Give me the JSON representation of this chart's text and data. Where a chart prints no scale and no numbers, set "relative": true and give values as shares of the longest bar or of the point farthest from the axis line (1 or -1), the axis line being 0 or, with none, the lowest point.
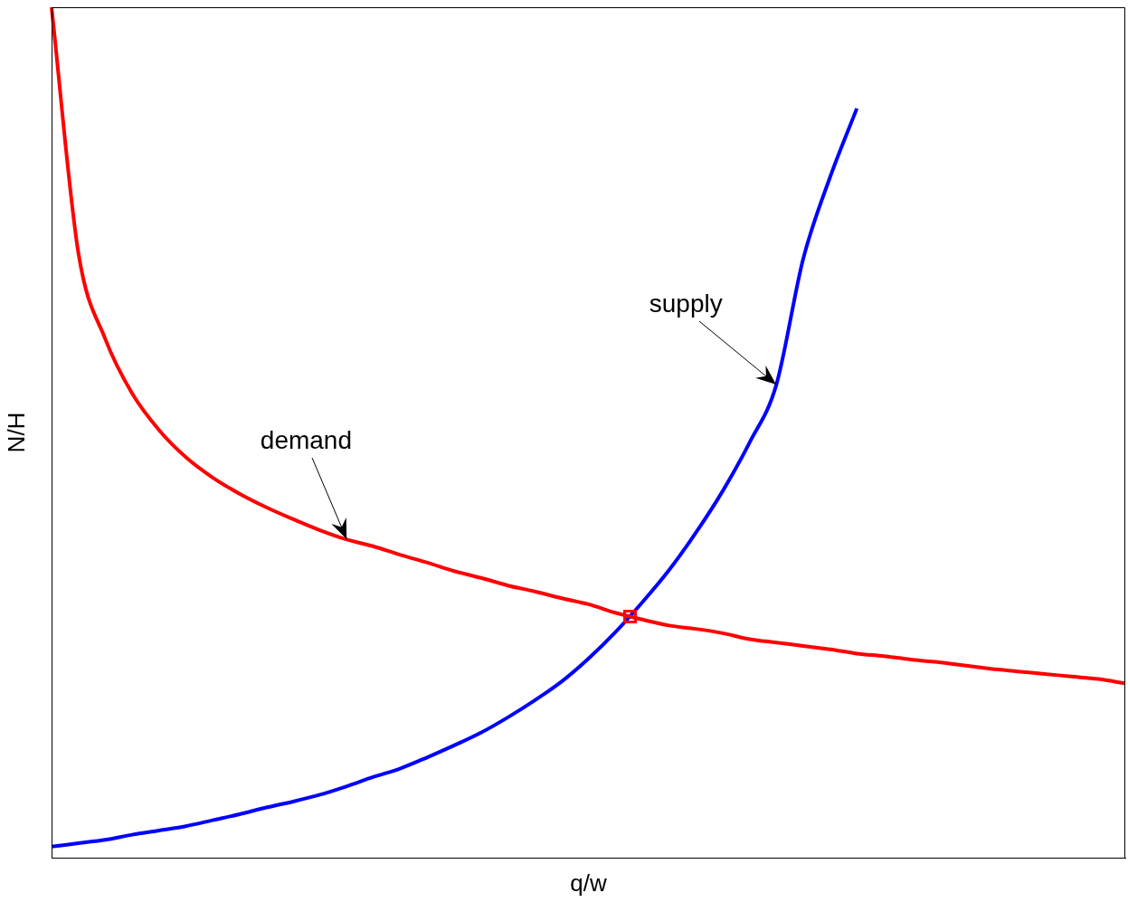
{
  "chart_data": {
    "type": "line",
    "relative": true,
    "xlabel": "q/w",
    "ylabel": "N/H",
    "legend": false,
    "grid": false,
    "marker": "none",
    "line_style": "solid",
    "categories": [
      null,
      null,
      null,
      null,
      null,
      null,
      null,
      null,
      null,
      null,
      null,
      null,
      null,
      null,
      null,
      null,
      null,
      null,
      null,
      null,
      null,
      null,
      null,
      null,
      null,
      null,
      null,
      null,
      null,
      null,
      null,
      null,
      null,
      null,
      null,
      null,
      null,
      null,
      null,
      null,
      null
    ],
    "series": [
      {
        "name": "demand",
        "color": "#ff0000",
        "values": [
          1.0,
          0.711,
          0.61,
          0.546,
          0.503,
          0.471,
          0.447,
          0.428,
          0.412,
          0.398,
          0.385,
          0.374,
          0.366,
          0.356,
          0.347,
          0.337,
          0.329,
          0.32,
          0.313,
          0.305,
          0.298,
          0.288,
          0.28,
          0.273,
          0.269,
          0.264,
          0.257,
          0.253,
          0.249,
          0.245,
          0.24,
          0.237,
          0.233,
          0.23,
          0.226,
          0.222,
          0.219,
          0.216,
          0.213,
          0.21,
          0.205
        ]
      },
      {
        "name": "supply",
        "color": "#0000ff",
        "values": [
          0.013,
          0.017,
          0.021,
          0.027,
          0.032,
          0.037,
          0.044,
          0.051,
          0.059,
          0.066,
          0.074,
          0.084,
          0.095,
          0.105,
          0.118,
          0.132,
          0.147,
          0.165,
          0.185,
          0.207,
          0.234,
          0.265,
          0.3,
          0.338,
          0.382,
          0.431,
          0.488,
          0.556,
          0.704,
          0.8,
          0.881,
          null,
          null,
          null,
          null,
          null,
          null,
          null,
          null,
          null,
          null
        ]
      }
    ]
  }
}
